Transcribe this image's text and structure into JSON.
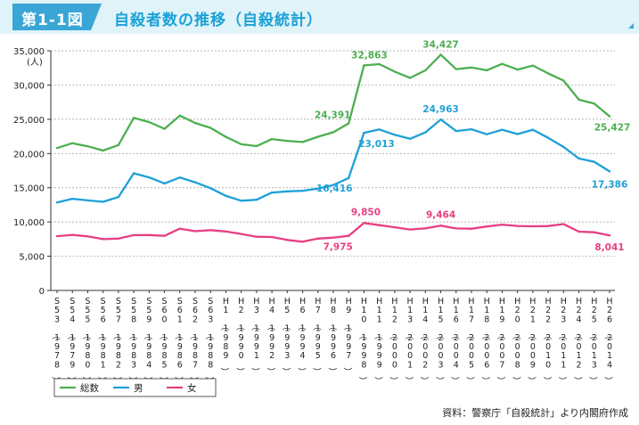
{
  "header": {
    "figure_label": "第1-1図",
    "title": "自殺者数の推移（自殺統計）"
  },
  "chart_data": {
    "type": "line",
    "title": "自殺者数の推移（自殺統計）",
    "ylabel": "(人)",
    "ylim": [
      0,
      35000
    ],
    "yticks": [
      0,
      5000,
      10000,
      15000,
      20000,
      25000,
      30000,
      35000
    ],
    "ytick_labels": [
      "0",
      "5,000",
      "10,000",
      "15,000",
      "20,000",
      "25,000",
      "30,000",
      "35,000"
    ],
    "grid": "horizontal dashed",
    "categories": [
      "S53(1978)",
      "S54(1979)",
      "S55(1980)",
      "S56(1981)",
      "S57(1982)",
      "S58(1983)",
      "S59(1984)",
      "S60(1985)",
      "S61(1986)",
      "S62(1987)",
      "S63(1988)",
      "H1(1989)",
      "H2(1990)",
      "H3(1991)",
      "H4(1992)",
      "H5(1993)",
      "H6(1994)",
      "H7(1995)",
      "H8(1996)",
      "H9(1997)",
      "H10(1998)",
      "H11(1999)",
      "H12(2000)",
      "H13(2001)",
      "H14(2002)",
      "H15(2003)",
      "H16(2004)",
      "H17(2005)",
      "H18(2006)",
      "H19(2007)",
      "H20(2008)",
      "H21(2009)",
      "H22(2010)",
      "H23(2011)",
      "H24(2012)",
      "H25(2013)",
      "H26(2014)"
    ],
    "series": [
      {
        "name": "総数",
        "color": "#4caf50",
        "values": [
          20788,
          21503,
          21048,
          20434,
          21228,
          25202,
          24596,
          23599,
          25524,
          24460,
          23742,
          22436,
          21346,
          21084,
          22104,
          21851,
          21679,
          22445,
          23104,
          24391,
          32863,
          33048,
          31957,
          31042,
          32143,
          34427,
          32325,
          32552,
          32155,
          33093,
          32249,
          32845,
          31690,
          30651,
          27858,
          27283,
          25427
        ]
      },
      {
        "name": "男",
        "color": "#1ea0d8",
        "values": [
          12859,
          13386,
          13155,
          12942,
          13654,
          17116,
          16508,
          15624,
          16497,
          15802,
          14934,
          13818,
          13102,
          13242,
          14296,
          14468,
          14560,
          14874,
          15393,
          16416,
          23013,
          23512,
          22727,
          22144,
          23080,
          24963,
          23272,
          23540,
          22813,
          23478,
          22831,
          23472,
          22283,
          20955,
          19273,
          18787,
          17386
        ]
      },
      {
        "name": "女",
        "color": "#e83f82",
        "values": [
          7929,
          8117,
          7893,
          7492,
          7574,
          8086,
          8088,
          7975,
          9027,
          8658,
          8808,
          8618,
          8244,
          7842,
          7808,
          7383,
          7119,
          7571,
          7711,
          7975,
          9850,
          9536,
          9230,
          8898,
          9063,
          9464,
          9053,
          9012,
          9342,
          9615,
          9418,
          9373,
          9407,
          9696,
          8585,
          8496,
          8041
        ]
      }
    ],
    "annotations": [
      {
        "series": "総数",
        "category": "H9(1997)",
        "text": "24,391"
      },
      {
        "series": "総数",
        "category": "H10(1998)",
        "text": "32,863"
      },
      {
        "series": "総数",
        "category": "H15(2003)",
        "text": "34,427"
      },
      {
        "series": "総数",
        "category": "H26(2014)",
        "text": "25,427"
      },
      {
        "series": "男",
        "category": "H9(1997)",
        "text": "16,416"
      },
      {
        "series": "男",
        "category": "H10(1998)",
        "text": "23,013"
      },
      {
        "series": "男",
        "category": "H15(2003)",
        "text": "24,963"
      },
      {
        "series": "男",
        "category": "H26(2014)",
        "text": "17,386"
      },
      {
        "series": "女",
        "category": "H9(1997)",
        "text": "7,975"
      },
      {
        "series": "女",
        "category": "H10(1998)",
        "text": "9,850"
      },
      {
        "series": "女",
        "category": "H15(2003)",
        "text": "9,464"
      },
      {
        "series": "女",
        "category": "H26(2014)",
        "text": "8,041"
      }
    ],
    "legend": {
      "placement": "bottom-left",
      "entries": [
        "総数",
        "男",
        "女"
      ]
    }
  },
  "source": "資料：警察庁「自殺統計」より内閣府作成"
}
